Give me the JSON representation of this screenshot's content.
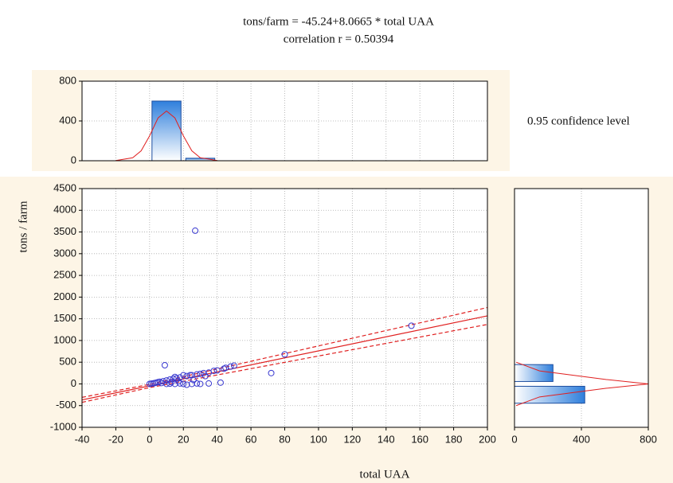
{
  "chart_data": [
    {
      "type": "scatter",
      "title": "tons/farm = -45.24+8.0665 * total UAA",
      "subtitle": "correlation r = 0.50394",
      "annotation": "0.95 confidence level",
      "xlabel": "total UAA",
      "ylabel": "tons / farm",
      "x": [
        27,
        155,
        80,
        72,
        50,
        48,
        45,
        42,
        9,
        35,
        30,
        25,
        20,
        15,
        10,
        5,
        2,
        0,
        1,
        3,
        4,
        6,
        8,
        12,
        14,
        16,
        18,
        22,
        24,
        28,
        32,
        38,
        40,
        44,
        10,
        15,
        20,
        25,
        30,
        35,
        28,
        18,
        12,
        22,
        7,
        13,
        17,
        26,
        33
      ],
      "y": [
        3530,
        1340,
        680,
        250,
        420,
        400,
        370,
        30,
        430,
        260,
        230,
        200,
        200,
        160,
        80,
        40,
        10,
        0,
        5,
        20,
        30,
        50,
        60,
        100,
        120,
        130,
        150,
        180,
        200,
        220,
        250,
        300,
        310,
        350,
        0,
        0,
        0,
        0,
        0,
        10,
        10,
        10,
        5,
        -20,
        20,
        40,
        60,
        90,
        180
      ],
      "color": "#3a3ad0",
      "xlim": [
        -40,
        200
      ],
      "xticks": [
        -40,
        -20,
        0,
        20,
        40,
        60,
        80,
        100,
        120,
        140,
        160,
        180,
        200
      ],
      "ylim": [
        -1000,
        4500
      ],
      "yticks": [
        -1000,
        -500,
        0,
        500,
        1000,
        1500,
        2000,
        2500,
        3000,
        3500,
        4000,
        4500
      ],
      "grid": true,
      "lines": [
        {
          "style": "solid",
          "color": "#e02020",
          "x": [
            -40,
            200
          ],
          "values": [
            -368,
            1568
          ]
        },
        {
          "style": "dashed",
          "color": "#e02020",
          "x": [
            -40,
            0,
            200
          ],
          "values": [
            -310,
            -10,
            1760
          ]
        },
        {
          "style": "dashed",
          "color": "#e02020",
          "x": [
            -40,
            0,
            200
          ],
          "values": [
            -425,
            -85,
            1370
          ]
        }
      ]
    },
    {
      "type": "histogram",
      "orientation": "vertical",
      "bins": [
        0,
        20,
        40
      ],
      "counts": [
        600,
        25
      ],
      "color": "#3a8ae0",
      "xlim": [
        -40,
        200
      ],
      "xticks": [
        -40,
        -20,
        0,
        20,
        40,
        60,
        80,
        100,
        120,
        140,
        160,
        180,
        200
      ],
      "ylim": [
        0,
        800
      ],
      "yticks": [
        0,
        400,
        800
      ],
      "grid": true,
      "fit": {
        "color": "#e02020",
        "x": [
          -20,
          -10,
          -5,
          0,
          5,
          10,
          15,
          20,
          25,
          30,
          40
        ],
        "values": [
          2,
          30,
          100,
          250,
          430,
          500,
          430,
          250,
          100,
          30,
          2
        ]
      }
    },
    {
      "type": "histogram",
      "orientation": "horizontal",
      "bins": [
        -500,
        0,
        500
      ],
      "counts": [
        420,
        230
      ],
      "color": "#3a8ae0",
      "xlim": [
        0,
        800
      ],
      "xticks": [
        0,
        400,
        800
      ],
      "ylim": [
        -1000,
        4500
      ],
      "grid": true,
      "fit": {
        "color": "#e02020",
        "y": [
          -500,
          -300,
          -100,
          0,
          100,
          300,
          500
        ],
        "values": [
          10,
          150,
          550,
          800,
          550,
          150,
          10
        ]
      }
    }
  ]
}
